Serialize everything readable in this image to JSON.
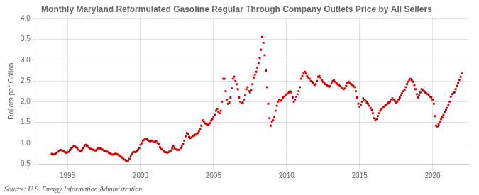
{
  "chart_data": {
    "type": "scatter",
    "title": "Monthly Maryland Reformulated Gasoline Regular Through Company Outlets Price by All Sellers",
    "y_label": "Dollars per Gallon",
    "annotations": [
      "Source: U.S. Energy Information Administration"
    ],
    "color": "#cc0000",
    "marker": "square",
    "grid": true,
    "xlim": [
      1993.0,
      2022.5
    ],
    "xticks": [
      1995,
      2000,
      2005,
      2010,
      2015,
      2020
    ],
    "ylim": [
      0.5,
      4.0
    ],
    "yticks": [
      0.5,
      {
        "value": 1.0,
        "label": "1.0"
      },
      1.5,
      {
        "value": 2.0,
        "label": "2.0"
      },
      2.5,
      {
        "value": 3.0,
        "label": "3.0"
      },
      3.5,
      {
        "value": 4.0,
        "label": "4.0"
      }
    ],
    "x": [
      1993.917,
      1994.0,
      1994.083,
      1994.167,
      1994.25,
      1994.333,
      1994.417,
      1994.5,
      1994.583,
      1994.667,
      1994.75,
      1994.833,
      1994.917,
      1995.0,
      1995.083,
      1995.167,
      1995.25,
      1995.333,
      1995.417,
      1995.5,
      1995.583,
      1995.667,
      1995.75,
      1995.833,
      1995.917,
      1996.0,
      1996.083,
      1996.167,
      1996.25,
      1996.333,
      1996.417,
      1996.5,
      1996.583,
      1996.667,
      1996.75,
      1996.833,
      1996.917,
      1997.0,
      1997.083,
      1997.167,
      1997.25,
      1997.333,
      1997.417,
      1997.5,
      1997.583,
      1997.667,
      1997.75,
      1997.833,
      1997.917,
      1998.0,
      1998.083,
      1998.167,
      1998.25,
      1998.333,
      1998.417,
      1998.5,
      1998.583,
      1998.667,
      1998.75,
      1998.833,
      1998.917,
      1999.0,
      1999.083,
      1999.167,
      1999.25,
      1999.333,
      1999.417,
      1999.5,
      1999.583,
      1999.667,
      1999.75,
      1999.833,
      1999.917,
      2000.0,
      2000.083,
      2000.167,
      2000.25,
      2000.333,
      2000.417,
      2000.5,
      2000.583,
      2000.667,
      2000.75,
      2000.833,
      2000.917,
      2001.0,
      2001.083,
      2001.167,
      2001.25,
      2001.333,
      2001.417,
      2001.5,
      2001.583,
      2001.667,
      2001.75,
      2001.833,
      2001.917,
      2002.0,
      2002.083,
      2002.167,
      2002.25,
      2002.333,
      2002.417,
      2002.5,
      2002.583,
      2002.667,
      2002.75,
      2002.833,
      2002.917,
      2003.0,
      2003.083,
      2003.167,
      2003.25,
      2003.333,
      2003.417,
      2003.5,
      2003.583,
      2003.667,
      2003.75,
      2003.833,
      2003.917,
      2004.0,
      2004.083,
      2004.167,
      2004.25,
      2004.333,
      2004.417,
      2004.5,
      2004.583,
      2004.667,
      2004.75,
      2004.833,
      2004.917,
      2005.0,
      2005.083,
      2005.167,
      2005.25,
      2005.333,
      2005.417,
      2005.5,
      2005.583,
      2005.667,
      2005.75,
      2005.833,
      2005.917,
      2006.0,
      2006.083,
      2006.167,
      2006.25,
      2006.333,
      2006.417,
      2006.5,
      2006.583,
      2006.667,
      2006.75,
      2006.833,
      2006.917,
      2007.0,
      2007.083,
      2007.167,
      2007.25,
      2007.333,
      2007.417,
      2007.5,
      2007.583,
      2007.667,
      2007.75,
      2007.833,
      2007.917,
      2008.0,
      2008.083,
      2008.167,
      2008.25,
      2008.333,
      2008.417,
      2008.5,
      2008.583,
      2008.667,
      2008.75,
      2008.833,
      2008.917,
      2009.0,
      2009.083,
      2009.167,
      2009.25,
      2009.333,
      2009.417,
      2009.5,
      2009.583,
      2009.667,
      2009.75,
      2009.833,
      2009.917,
      2010.0,
      2010.083,
      2010.167,
      2010.25,
      2010.333,
      2010.417,
      2010.5,
      2010.583,
      2010.667,
      2010.75,
      2010.833,
      2010.917,
      2011.0,
      2011.083,
      2011.167,
      2011.25,
      2011.333,
      2011.417,
      2011.5,
      2011.583,
      2011.667,
      2011.75,
      2011.833,
      2011.917,
      2012.0,
      2012.083,
      2012.167,
      2012.25,
      2012.333,
      2012.417,
      2012.5,
      2012.583,
      2012.667,
      2012.75,
      2012.833,
      2012.917,
      2013.0,
      2013.083,
      2013.167,
      2013.25,
      2013.333,
      2013.417,
      2013.5,
      2013.583,
      2013.667,
      2013.75,
      2013.833,
      2013.917,
      2014.0,
      2014.083,
      2014.167,
      2014.25,
      2014.333,
      2014.417,
      2014.5,
      2014.583,
      2014.667,
      2014.75,
      2014.833,
      2014.917,
      2015.0,
      2015.083,
      2015.167,
      2015.25,
      2015.333,
      2015.417,
      2015.5,
      2015.583,
      2015.667,
      2015.75,
      2015.833,
      2015.917,
      2016.0,
      2016.083,
      2016.167,
      2016.25,
      2016.333,
      2016.417,
      2016.5,
      2016.583,
      2016.667,
      2016.75,
      2016.833,
      2016.917,
      2017.0,
      2017.083,
      2017.167,
      2017.25,
      2017.333,
      2017.417,
      2017.5,
      2017.583,
      2017.667,
      2017.75,
      2017.833,
      2017.917,
      2018.0,
      2018.083,
      2018.167,
      2018.25,
      2018.333,
      2018.417,
      2018.5,
      2018.583,
      2018.667,
      2018.75,
      2018.833,
      2018.917,
      2019.0,
      2019.083,
      2019.167,
      2019.25,
      2019.333,
      2019.417,
      2019.5,
      2019.583,
      2019.667,
      2019.75,
      2019.833,
      2019.917,
      2020.0,
      2020.083,
      2020.167,
      2020.25,
      2020.333,
      2020.417,
      2020.5,
      2020.583,
      2020.667,
      2020.75,
      2020.833,
      2020.917,
      2021.0,
      2021.083,
      2021.167,
      2021.25,
      2021.333,
      2021.417,
      2021.5,
      2021.583,
      2021.667,
      2021.75,
      2021.833,
      2021.917,
      2022.0
    ],
    "values": [
      0.74,
      0.72,
      0.73,
      0.74,
      0.76,
      0.79,
      0.82,
      0.83,
      0.83,
      0.82,
      0.8,
      0.78,
      0.77,
      0.78,
      0.79,
      0.83,
      0.87,
      0.89,
      0.93,
      0.92,
      0.9,
      0.88,
      0.84,
      0.82,
      0.8,
      0.83,
      0.88,
      0.92,
      0.96,
      0.94,
      0.91,
      0.88,
      0.86,
      0.85,
      0.84,
      0.83,
      0.82,
      0.84,
      0.87,
      0.88,
      0.87,
      0.86,
      0.84,
      0.82,
      0.81,
      0.8,
      0.79,
      0.77,
      0.75,
      0.73,
      0.72,
      0.73,
      0.74,
      0.74,
      0.73,
      0.71,
      0.69,
      0.67,
      0.65,
      0.62,
      0.6,
      0.58,
      0.57,
      0.58,
      0.62,
      0.68,
      0.74,
      0.78,
      0.79,
      0.78,
      0.8,
      0.84,
      0.88,
      0.96,
      1.0,
      1.06,
      1.08,
      1.1,
      1.09,
      1.07,
      1.05,
      1.04,
      1.06,
      1.05,
      1.02,
      1.03,
      1.05,
      1.0,
      0.97,
      0.9,
      0.86,
      0.84,
      0.8,
      0.78,
      0.78,
      0.77,
      0.78,
      0.8,
      0.82,
      0.87,
      0.92,
      0.87,
      0.85,
      0.84,
      0.83,
      0.84,
      0.88,
      0.93,
      0.98,
      1.06,
      1.16,
      1.24,
      1.22,
      1.15,
      1.12,
      1.14,
      1.17,
      1.18,
      1.2,
      1.22,
      1.24,
      1.28,
      1.34,
      1.42,
      1.55,
      1.52,
      1.48,
      1.46,
      1.44,
      1.45,
      1.48,
      1.54,
      1.58,
      1.62,
      1.68,
      1.78,
      1.82,
      1.75,
      1.72,
      1.78,
      2.0,
      2.55,
      2.55,
      2.25,
      2.05,
      1.95,
      1.98,
      2.1,
      2.32,
      2.55,
      2.6,
      2.5,
      2.42,
      2.3,
      2.1,
      2.0,
      1.96,
      1.98,
      2.05,
      2.15,
      2.3,
      2.35,
      2.25,
      2.22,
      2.28,
      2.42,
      2.58,
      2.65,
      2.72,
      2.82,
      2.93,
      3.05,
      3.25,
      3.56,
      3.42,
      3.12,
      2.75,
      2.35,
      1.95,
      1.6,
      1.42,
      1.52,
      1.55,
      1.62,
      1.78,
      1.9,
      2.0,
      2.05,
      2.02,
      2.05,
      2.1,
      2.12,
      2.15,
      2.18,
      2.2,
      2.22,
      2.25,
      2.22,
      2.1,
      2.0,
      2.05,
      2.12,
      2.18,
      2.25,
      2.35,
      2.55,
      2.62,
      2.68,
      2.72,
      2.68,
      2.62,
      2.58,
      2.55,
      2.5,
      2.48,
      2.45,
      2.4,
      2.42,
      2.5,
      2.6,
      2.62,
      2.58,
      2.52,
      2.48,
      2.45,
      2.42,
      2.4,
      2.38,
      2.36,
      2.38,
      2.45,
      2.5,
      2.52,
      2.48,
      2.45,
      2.42,
      2.4,
      2.38,
      2.35,
      2.32,
      2.3,
      2.32,
      2.38,
      2.45,
      2.48,
      2.45,
      2.42,
      2.4,
      2.38,
      2.35,
      2.25,
      2.1,
      1.95,
      1.88,
      1.92,
      2.0,
      2.08,
      2.05,
      2.02,
      1.98,
      1.95,
      1.9,
      1.85,
      1.8,
      1.72,
      1.6,
      1.55,
      1.58,
      1.65,
      1.72,
      1.78,
      1.82,
      1.85,
      1.88,
      1.9,
      1.92,
      1.95,
      1.98,
      2.0,
      2.05,
      2.08,
      2.05,
      2.02,
      1.98,
      2.0,
      2.05,
      2.1,
      2.15,
      2.2,
      2.25,
      2.28,
      2.35,
      2.42,
      2.48,
      2.52,
      2.55,
      2.52,
      2.48,
      2.4,
      2.3,
      2.18,
      2.1,
      2.15,
      2.22,
      2.3,
      2.28,
      2.25,
      2.22,
      2.2,
      2.18,
      2.15,
      2.12,
      2.1,
      2.05,
      1.95,
      1.65,
      1.42,
      1.4,
      1.45,
      1.52,
      1.58,
      1.62,
      1.68,
      1.75,
      1.8,
      1.85,
      1.92,
      2.0,
      2.12,
      2.18,
      2.2,
      2.22,
      2.3,
      2.38,
      2.45,
      2.52,
      2.6,
      2.68
    ]
  }
}
